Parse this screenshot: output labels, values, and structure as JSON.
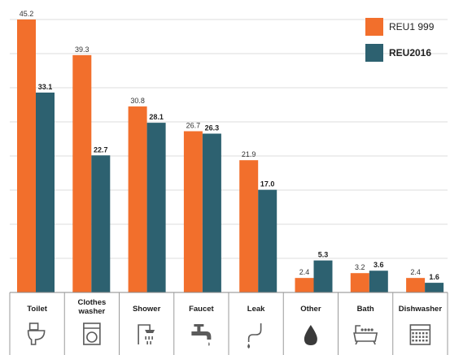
{
  "chart_data": {
    "type": "bar",
    "categories": [
      [
        "Toilet"
      ],
      [
        "Clothes",
        "washer"
      ],
      [
        "Shower"
      ],
      [
        "Faucet"
      ],
      [
        "Leak"
      ],
      [
        "Other"
      ],
      [
        "Bath"
      ],
      [
        "Dishwasher"
      ]
    ],
    "category_icons": [
      "toilet-icon",
      "washing-machine-icon",
      "shower-icon",
      "faucet-icon",
      "leak-pipe-icon",
      "water-drop-icon",
      "bathtub-icon",
      "dishwasher-icon"
    ],
    "series": [
      {
        "name": "REU1 999",
        "color": "#f26f2c",
        "values": [
          45.2,
          39.3,
          30.8,
          26.7,
          21.9,
          2.4,
          3.2,
          2.4
        ],
        "labels": [
          "45.2",
          "39.3",
          "30.8",
          "26.7",
          "21.9",
          "2.4",
          "3.2",
          "2.4"
        ]
      },
      {
        "name": "REU2016",
        "color": "#2d6170",
        "values": [
          33.1,
          22.7,
          28.1,
          26.3,
          17.0,
          5.3,
          3.6,
          1.6
        ],
        "labels": [
          "33.1",
          "22.7",
          "28.1",
          "26.3",
          "17.0",
          "5.3",
          "3.6",
          "1.6"
        ]
      }
    ],
    "ylim": [
      0,
      45.2
    ],
    "grid": true,
    "legend_position": "top-right"
  }
}
